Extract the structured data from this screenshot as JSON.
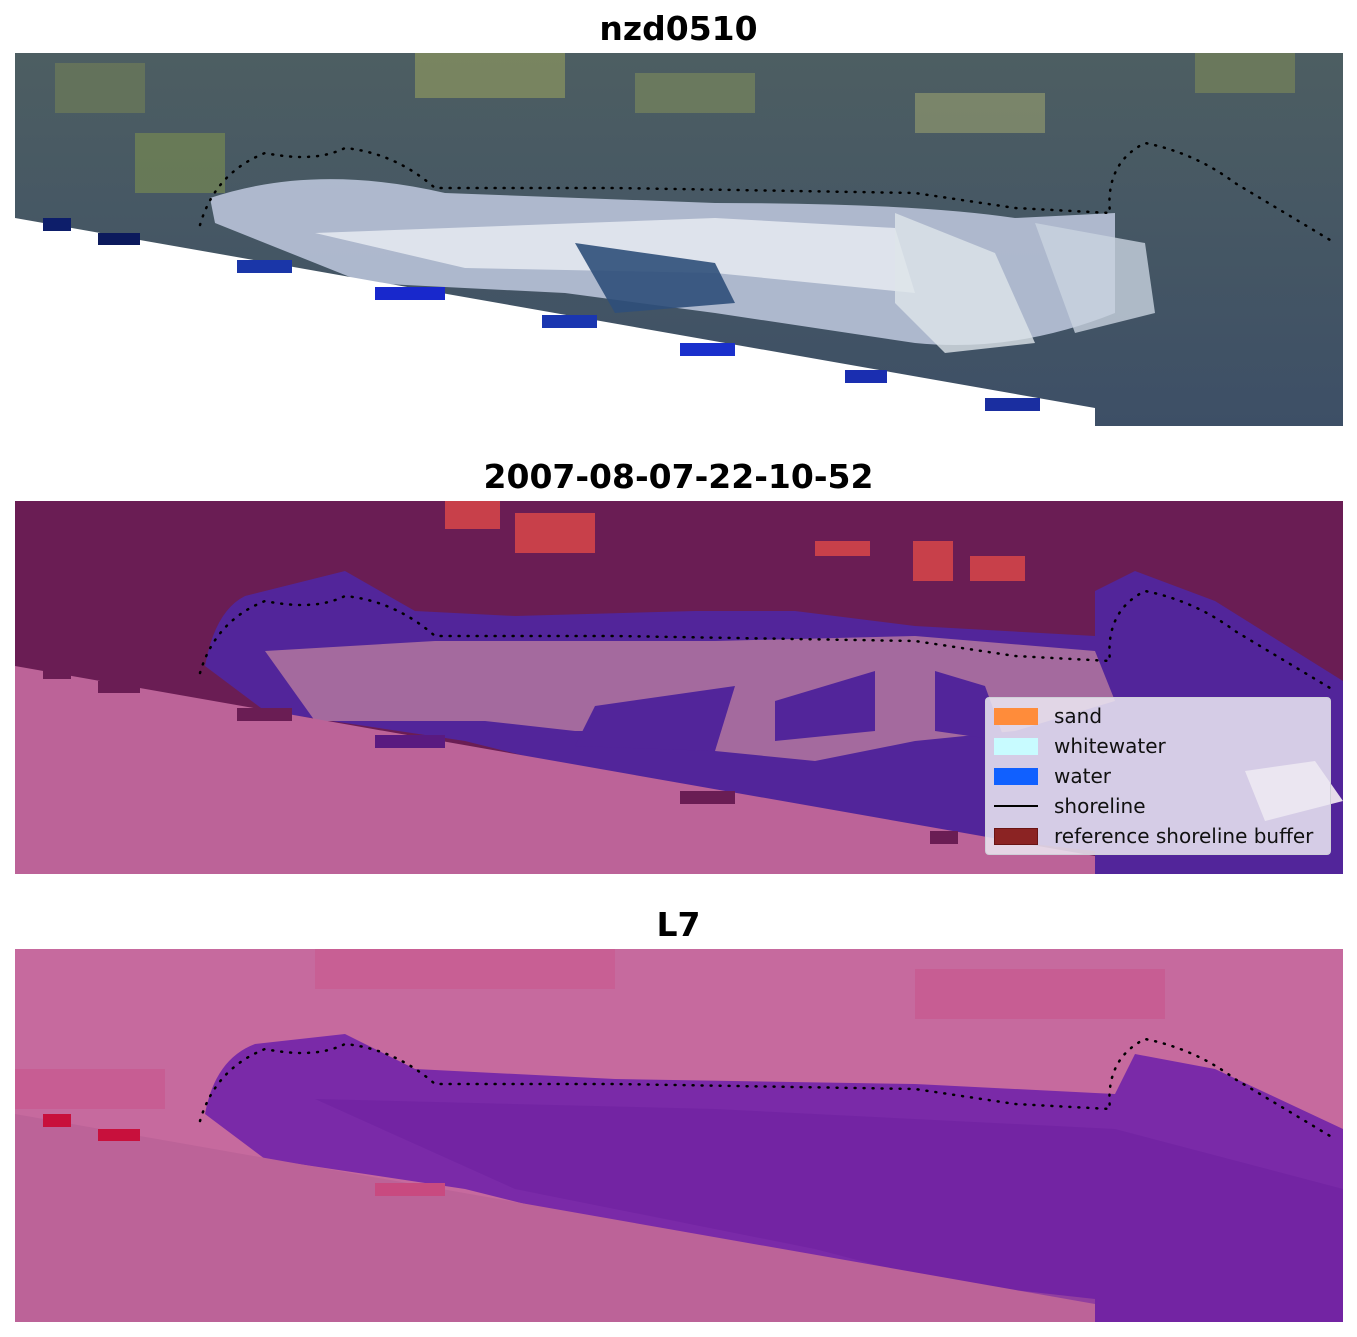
{
  "panels": [
    {
      "title": "nzd0510",
      "kind": "rgb"
    },
    {
      "title": "2007-08-07-22-10-52",
      "kind": "classified"
    },
    {
      "title": "L7",
      "kind": "index"
    }
  ],
  "legend": {
    "items": [
      {
        "label": "sand",
        "color": "#ff8c3a",
        "type": "patch"
      },
      {
        "label": "whitewater",
        "color": "#c8fbff",
        "type": "patch"
      },
      {
        "label": "water",
        "color": "#1060ff",
        "type": "patch"
      },
      {
        "label": "shoreline",
        "color": "#000000",
        "type": "line"
      },
      {
        "label": "reference shoreline buffer",
        "color": "#8b2323",
        "type": "patch"
      }
    ]
  },
  "colors": {
    "rgb_land": "#4a5a60",
    "rgb_vegetation": "#7d8f58",
    "rgb_foam": "#dde3ee",
    "rgb_sea": "#2e4a7a",
    "rgb_deepblue": "#1a2ecc",
    "class_land": "#6a1d54",
    "class_land_red": "#c8404a",
    "class_water": "#52259a",
    "class_whitewater": "#a46a9e",
    "class_nodata": "#bc6398",
    "index_land": "#c66a9e",
    "index_water": "#7a2aa8",
    "index_nodata": "#bc6398",
    "shoreline_dots": "#000000"
  }
}
